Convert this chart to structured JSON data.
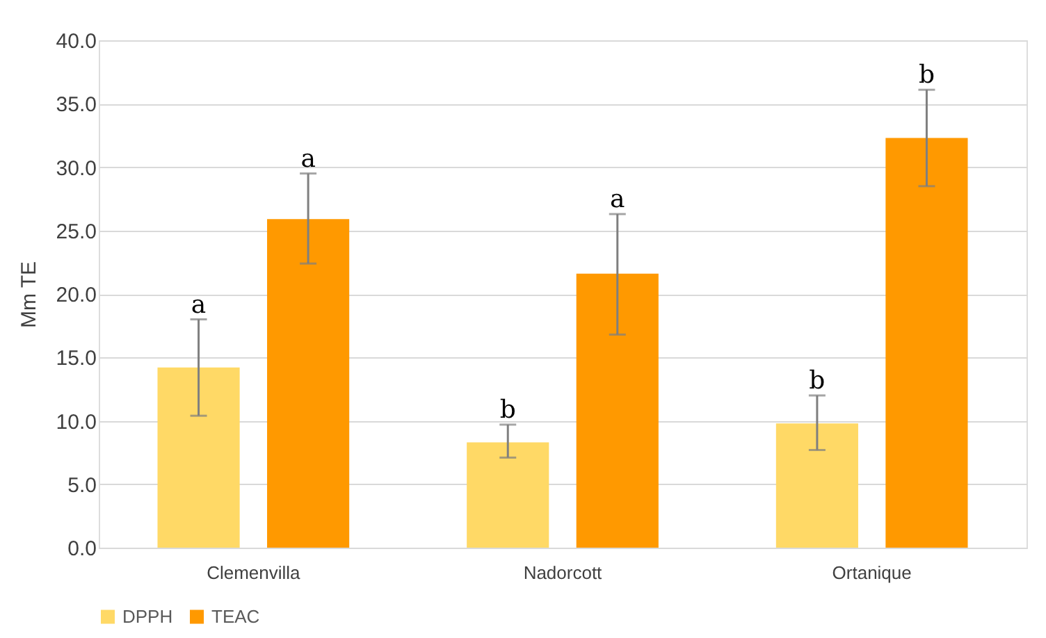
{
  "chart_data": {
    "type": "bar",
    "ylabel": "Mm TE",
    "categories": [
      "Clemenvilla",
      "Nadorcott",
      "Ortanique"
    ],
    "series": [
      {
        "name": "DPPH",
        "color": "#ffd966",
        "values": [
          14.2,
          8.3,
          9.8
        ],
        "errors": [
          [
            10.4,
            18.0
          ],
          [
            7.1,
            9.7
          ],
          [
            7.7,
            12.0
          ]
        ],
        "value_labels": [
          "a",
          "b",
          "b"
        ]
      },
      {
        "name": "TEAC",
        "color": "#ff9900",
        "values": [
          25.9,
          21.6,
          32.3
        ],
        "errors": [
          [
            22.4,
            29.5
          ],
          [
            16.8,
            26.3
          ],
          [
            28.5,
            36.1
          ]
        ],
        "value_labels": [
          "a",
          "a",
          "b"
        ]
      }
    ],
    "ylim": [
      0,
      40
    ],
    "yticks": [
      {
        "value": 0,
        "label": "0.0"
      },
      {
        "value": 5,
        "label": "5.0"
      },
      {
        "value": 10,
        "label": "10.0"
      },
      {
        "value": 15,
        "label": "15.0"
      },
      {
        "value": 20,
        "label": "20.0"
      },
      {
        "value": 25,
        "label": "25.0"
      },
      {
        "value": 30,
        "label": "30.0"
      },
      {
        "value": 35,
        "label": "35.0"
      },
      {
        "value": 40,
        "label": "40.0"
      }
    ],
    "grid": "y",
    "legend": "bottom"
  }
}
